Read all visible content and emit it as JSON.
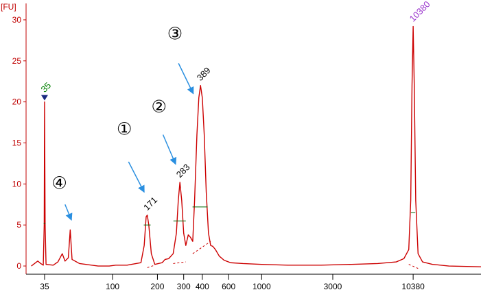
{
  "chart_data": {
    "type": "line",
    "title": "",
    "unit_label": "[FU]",
    "xlabel": "",
    "ylabel": "",
    "ylim": [
      -1,
      32
    ],
    "y_ticks": [
      0,
      5,
      10,
      15,
      20,
      25,
      30
    ],
    "x_scale": "log",
    "x_ticks": [
      35,
      100,
      200,
      300,
      400,
      600,
      1000,
      3000,
      10380
    ],
    "x_tick_labels": [
      "35",
      "100",
      "200",
      "300",
      "400",
      "600",
      "1000",
      "3000",
      "10380"
    ],
    "grid": false,
    "legend": "none",
    "colors": {
      "trace": "#cc0000",
      "axis": "#c00000",
      "marker_lower": "#008000",
      "marker_upper": "#9933cc",
      "arrow": "#2a8fe0",
      "peak_bar": "#006600"
    },
    "series": [
      {
        "values": [
          [
            28.5,
            0.0
          ],
          [
            31.5,
            0.6
          ],
          [
            33.0,
            0.3
          ],
          [
            34.3,
            0.1
          ],
          [
            34.8,
            5.0
          ],
          [
            35.0,
            20.0
          ],
          [
            35.3,
            5.0
          ],
          [
            35.8,
            0.2
          ],
          [
            40.0,
            0.1
          ],
          [
            43.0,
            0.5
          ],
          [
            46.0,
            1.5
          ],
          [
            48.0,
            0.6
          ],
          [
            50.5,
            1.0
          ],
          [
            52.0,
            4.4
          ],
          [
            53.5,
            0.8
          ],
          [
            60.0,
            0.3
          ],
          [
            80.0,
            0.0
          ],
          [
            95.0,
            0.0
          ],
          [
            105.0,
            0.1
          ],
          [
            125.0,
            0.1
          ],
          [
            155.0,
            0.4
          ],
          [
            163.0,
            2.5
          ],
          [
            168.0,
            6.0
          ],
          [
            171.0,
            6.2
          ],
          [
            175.0,
            5.0
          ],
          [
            182.0,
            1.5
          ],
          [
            192.0,
            0.2
          ],
          [
            215.0,
            0.4
          ],
          [
            225.0,
            0.8
          ],
          [
            238.0,
            0.9
          ],
          [
            255.0,
            1.5
          ],
          [
            268.0,
            4.0
          ],
          [
            276.0,
            8.0
          ],
          [
            283.0,
            10.2
          ],
          [
            291.0,
            8.0
          ],
          [
            300.0,
            4.0
          ],
          [
            310.0,
            2.5
          ],
          [
            322.0,
            3.8
          ],
          [
            333.0,
            3.5
          ],
          [
            345.0,
            3.0
          ],
          [
            355.0,
            8.0
          ],
          [
            368.0,
            16.0
          ],
          [
            379.0,
            20.5
          ],
          [
            389.0,
            22.0
          ],
          [
            400.0,
            20.5
          ],
          [
            412.0,
            16.0
          ],
          [
            425.0,
            9.0
          ],
          [
            440.0,
            4.0
          ],
          [
            455.0,
            2.5
          ],
          [
            470.0,
            2.4
          ],
          [
            490.0,
            2.0
          ],
          [
            520.0,
            1.2
          ],
          [
            560.0,
            0.7
          ],
          [
            620.0,
            0.4
          ],
          [
            750.0,
            0.3
          ],
          [
            1000.0,
            0.2
          ],
          [
            1500.0,
            0.1
          ],
          [
            2500.0,
            0.1
          ],
          [
            4000.0,
            0.2
          ],
          [
            6000.0,
            0.3
          ],
          [
            8000.0,
            0.5
          ],
          [
            9000.0,
            0.9
          ],
          [
            9700.0,
            2.0
          ],
          [
            10000.0,
            8.0
          ],
          [
            10200.0,
            22.0
          ],
          [
            10380.0,
            29.2
          ],
          [
            10560.0,
            22.0
          ],
          [
            10800.0,
            8.0
          ],
          [
            11200.0,
            1.5
          ],
          [
            12000.0,
            0.5
          ],
          [
            14000.0,
            0.2
          ],
          [
            18000.0,
            0.0
          ],
          [
            30000.0,
            -0.1
          ]
        ]
      }
    ],
    "baseline_segments": [
      [
        [
          171.0,
          -0.2
        ],
        [
          192.0,
          0.1
        ]
      ],
      [
        [
          255.0,
          0.3
        ],
        [
          310.0,
          0.5
        ]
      ],
      [
        [
          345.0,
          1.5
        ],
        [
          455.0,
          3.0
        ]
      ],
      [
        [
          9700.0,
          0.2
        ],
        [
          11200.0,
          -0.3
        ]
      ]
    ],
    "peak_bars": [
      {
        "center": 35.0,
        "half_width": 0.5,
        "y": 5.2
      },
      {
        "center": 171.0,
        "half_width": 9.0,
        "y": 5.0
      },
      {
        "center": 283.0,
        "half_width": 27.0,
        "y": 5.5
      },
      {
        "center": 389.0,
        "half_width": 45.0,
        "y": 7.2
      },
      {
        "center": 10380.0,
        "half_width": 350.0,
        "y": 6.5
      }
    ],
    "peak_labels": [
      {
        "x": 35.0,
        "y": 20.0,
        "text": "35",
        "color": "#008000",
        "marker": true
      },
      {
        "x": 171.0,
        "y": 6.2,
        "text": "171",
        "color": "#000000"
      },
      {
        "x": 283.0,
        "y": 10.2,
        "text": "283",
        "color": "#000000"
      },
      {
        "x": 389.0,
        "y": 22.0,
        "text": "389",
        "color": "#000000"
      },
      {
        "x": 10380.0,
        "y": 29.2,
        "text": "10380",
        "color": "#9933cc"
      }
    ],
    "annotations": [
      {
        "text": "①",
        "at": [
          120.0,
          16.0
        ],
        "arrow_from": [
          128.0,
          12.7
        ],
        "arrow_to": [
          163.0,
          9.0
        ]
      },
      {
        "text": "②",
        "at": [
          205.0,
          18.7
        ],
        "arrow_from": [
          218.0,
          16.0
        ],
        "arrow_to": [
          265.0,
          12.4
        ]
      },
      {
        "text": "③",
        "at": [
          262.0,
          27.6
        ],
        "arrow_from": [
          277.0,
          24.7
        ],
        "arrow_to": [
          348.0,
          21.0
        ]
      },
      {
        "text": "④",
        "at": [
          44.0,
          9.4
        ],
        "arrow_from": [
          48.0,
          7.5
        ],
        "arrow_to": [
          53.0,
          5.6
        ]
      }
    ]
  }
}
